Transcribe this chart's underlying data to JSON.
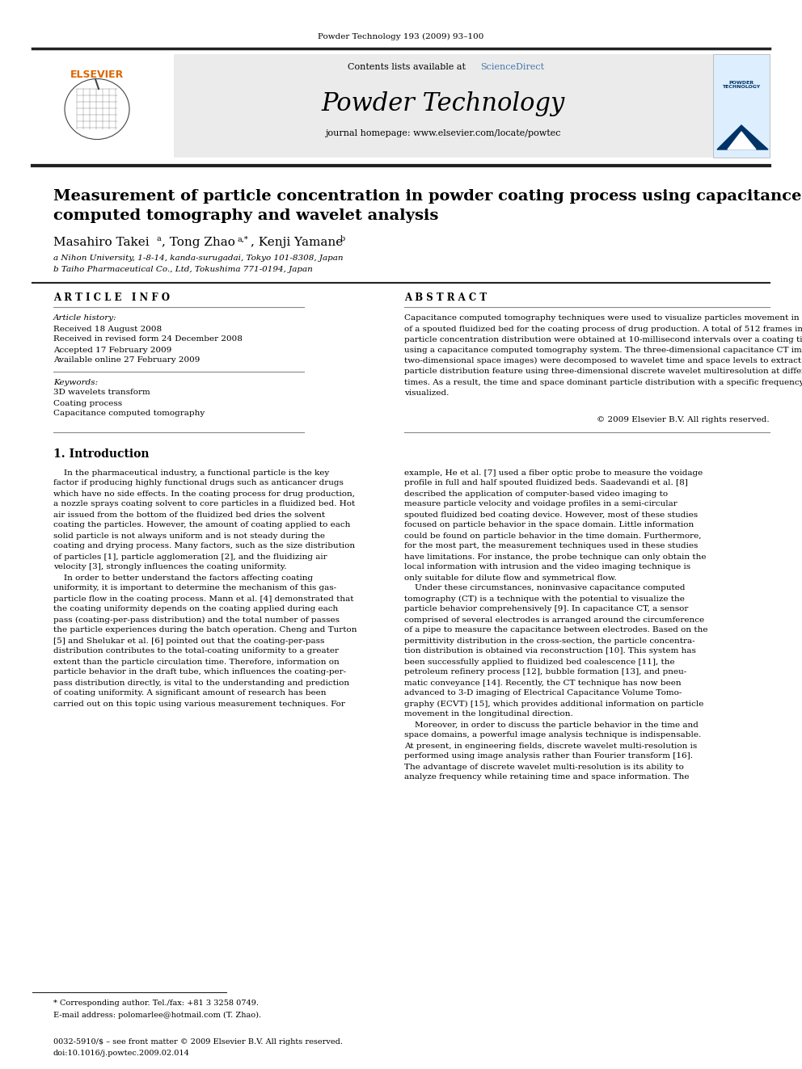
{
  "page_header": "Powder Technology 193 (2009) 93–100",
  "journal_name": "Powder Technology",
  "contents_line_prefix": "Contents lists available at ",
  "contents_line_link": "ScienceDirect",
  "journal_url": "journal homepage: www.elsevier.com/locate/powtec",
  "title_line1": "Measurement of particle concentration in powder coating process using capacitance",
  "title_line2": "computed tomography and wavelet analysis",
  "author1": "Masahiro Takei ",
  "author1_sup": "a",
  "author2": ", Tong Zhao ",
  "author2_sup": "a,*",
  "author3": ", Kenji Yamane ",
  "author3_sup": "b",
  "affil_a": "a Nihon University, 1-8-14, kanda-surugadai, Tokyo 101-8308, Japan",
  "affil_b": "b Taiho Pharmaceutical Co., Ltd, Tokushima 771-0194, Japan",
  "section_article_info": "ARTICLE INFO",
  "section_abstract": "ABSTRACT",
  "article_history_label": "Article history:",
  "received": "Received 18 August 2008",
  "revised": "Received in revised form 24 December 2008",
  "accepted": "Accepted 17 February 2009",
  "available": "Available online 27 February 2009",
  "keywords_label": "Keywords:",
  "keyword1": "3D wavelets transform",
  "keyword2": "Coating process",
  "keyword3": "Capacitance computed tomography",
  "copyright": "© 2009 Elsevier B.V. All rights reserved.",
  "intro_heading": "1. Introduction",
  "footnote1": "* Corresponding author. Tel./fax: +81 3 3258 0749.",
  "footnote2": "E-mail address: polomarlee@hotmail.com (T. Zhao).",
  "footer1": "0032-5910/$ – see front matter © 2009 Elsevier B.V. All rights reserved.",
  "footer2": "doi:10.1016/j.powtec.2009.02.014",
  "bg_color": "#ffffff",
  "header_box_color": "#ebebeb",
  "link_color": "#4477aa",
  "border_color": "#222222",
  "text_color": "#000000",
  "elsevier_color": "#dd6600"
}
